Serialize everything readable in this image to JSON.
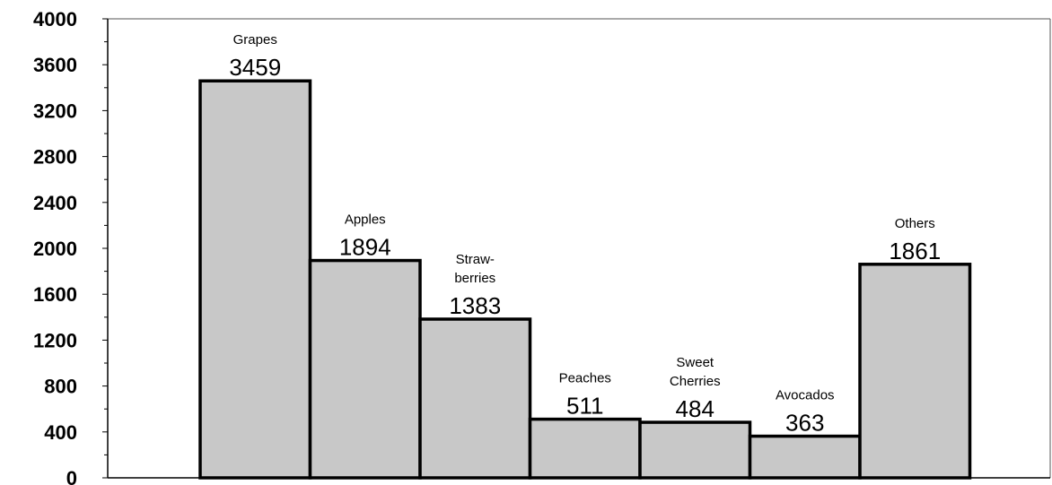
{
  "chart_data": {
    "type": "bar",
    "categories": [
      "Grapes",
      "Apples",
      "Straw-\nberries",
      "Peaches",
      "Sweet\nCherries",
      "Avocados",
      "Others"
    ],
    "values": [
      3459,
      1894,
      1383,
      511,
      484,
      363,
      1861
    ],
    "value_labels": [
      "3459",
      "1894",
      "1383",
      "511",
      "484",
      "363",
      "1861"
    ],
    "title": "",
    "xlabel": "",
    "ylabel": "",
    "ylim": [
      0,
      4000
    ],
    "yticks": [
      0,
      400,
      800,
      1200,
      1600,
      2000,
      2400,
      2800,
      3200,
      3600,
      4000
    ],
    "ytick_labels": [
      "0",
      "400",
      "800",
      "1200",
      "1600",
      "2000",
      "2400",
      "2800",
      "3200",
      "3600",
      "4000"
    ],
    "minor_ticks_per_major": 2,
    "grid": false,
    "legend": "none",
    "colors": {
      "bar_fill": "#c8c8c8",
      "bar_stroke": "#000000",
      "axis": "#000000",
      "frame": "#555555"
    }
  }
}
